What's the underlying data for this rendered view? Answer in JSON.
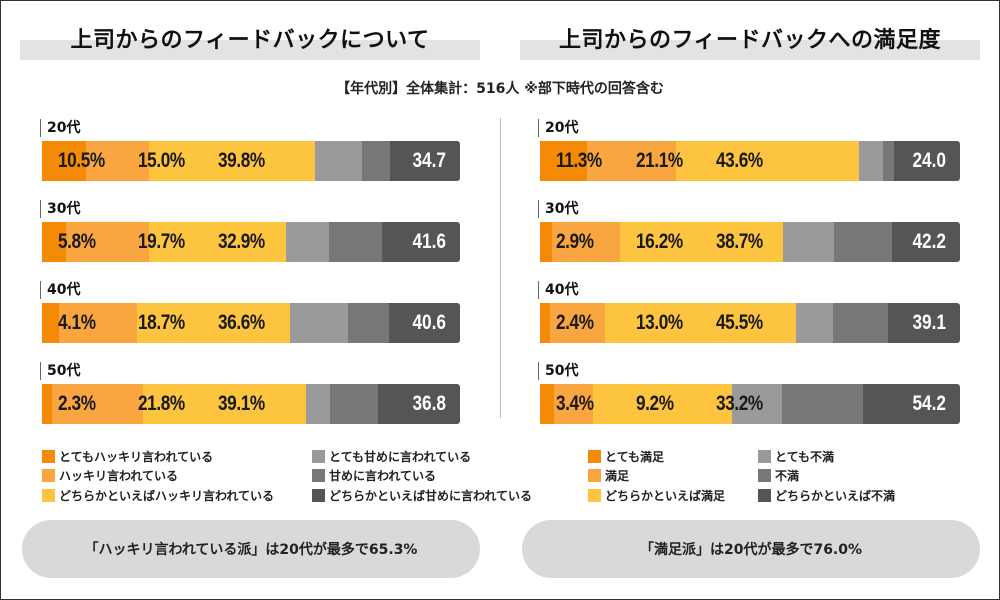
{
  "subtitle": "【年代別】全体集計：516人 ※部下時代の回答含む",
  "colors": [
    "#f58a07",
    "#f9a640",
    "#fdc43f",
    "#9a9a9a",
    "#777777",
    "#555555"
  ],
  "chart_data": [
    {
      "type": "bar",
      "orientation": "horizontal-stacked-100",
      "title": "上司からのフィードバックについて",
      "categories": [
        "20代",
        "30代",
        "40代",
        "50代"
      ],
      "series": [
        {
          "name": "とてもハッキリ言われている",
          "values": [
            10.5,
            5.8,
            4.1,
            2.3
          ]
        },
        {
          "name": "ハッキリ言われている",
          "values": [
            15.0,
            19.7,
            18.7,
            21.8
          ]
        },
        {
          "name": "どちらかといえばハッキリ言われている",
          "values": [
            39.8,
            32.9,
            36.6,
            39.1
          ]
        },
        {
          "name": "とても甘めに言われている",
          "values": [
            11.2,
            10.3,
            13.9,
            5.7
          ]
        },
        {
          "name": "甘めに言われている",
          "values": [
            6.7,
            12.7,
            9.8,
            11.5
          ]
        },
        {
          "name": "どちらかといえば甘めに言われている",
          "values": [
            16.8,
            18.6,
            16.9,
            19.6
          ]
        }
      ],
      "labels": [
        [
          "10.5%",
          "15.0%",
          "39.8%"
        ],
        [
          "5.8%",
          "19.7%",
          "32.9%"
        ],
        [
          "4.1%",
          "18.7%",
          "36.6%"
        ],
        [
          "2.3%",
          "21.8%",
          "39.1%"
        ]
      ],
      "negative_totals": [
        "34.7",
        "41.6",
        "40.6",
        "36.8"
      ],
      "callout": "「ハッキリ言われている派」は20代が最多で65.3%"
    },
    {
      "type": "bar",
      "orientation": "horizontal-stacked-100",
      "title": "上司からのフィードバックへの満足度",
      "categories": [
        "20代",
        "30代",
        "40代",
        "50代"
      ],
      "series": [
        {
          "name": "とても満足",
          "values": [
            11.3,
            2.9,
            2.4,
            3.4
          ]
        },
        {
          "name": "満足",
          "values": [
            21.1,
            16.2,
            13.0,
            9.2
          ]
        },
        {
          "name": "どちらかといえば満足",
          "values": [
            43.6,
            38.7,
            45.5,
            33.2
          ]
        },
        {
          "name": "とても不満",
          "values": [
            5.7,
            12.1,
            8.9,
            11.8
          ]
        },
        {
          "name": "不満",
          "values": [
            2.6,
            13.9,
            13.0,
            19.2
          ]
        },
        {
          "name": "どちらかといえば不満",
          "values": [
            15.7,
            16.2,
            17.2,
            23.2
          ]
        }
      ],
      "labels": [
        [
          "11.3%",
          "21.1%",
          "43.6%"
        ],
        [
          "2.9%",
          "16.2%",
          "38.7%"
        ],
        [
          "2.4%",
          "13.0%",
          "45.5%"
        ],
        [
          "3.4%",
          "9.2%",
          "33.2%"
        ]
      ],
      "negative_totals": [
        "24.0",
        "42.2",
        "39.1",
        "54.2"
      ],
      "callout": "「満足派」は20代が最多で76.0%"
    }
  ]
}
